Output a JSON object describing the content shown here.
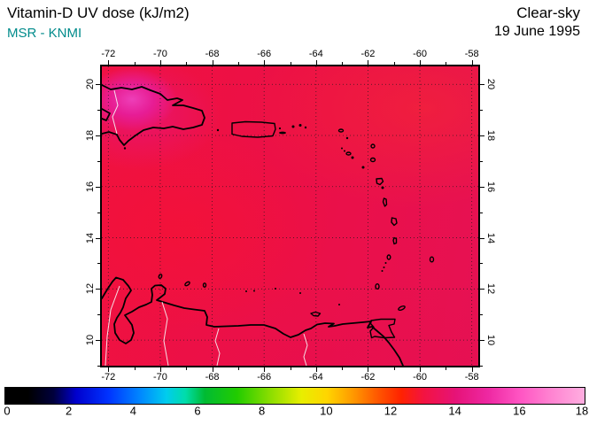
{
  "header": {
    "title": "Vitamin-D UV dose (kJ/m2)",
    "source": "MSR - KNMI",
    "condition": "Clear-sky",
    "date": "19 June 1995"
  },
  "colors": {
    "source_text": "#008b8b",
    "field_base": "#ea1049",
    "field_hotspot": "#e020a0",
    "frame": "#000000"
  },
  "map": {
    "lon_range": [
      -72.25,
      -57.75
    ],
    "lat_range": [
      9.0,
      20.7
    ],
    "lon_ticks": [
      -72,
      -70,
      -68,
      -66,
      -64,
      -62,
      -60,
      -58
    ],
    "lat_ticks": [
      10,
      12,
      14,
      16,
      18,
      20
    ],
    "grid_step_deg": 2
  },
  "colorbar": {
    "min": 0,
    "max": 18,
    "label_values": [
      0,
      2,
      4,
      6,
      8,
      10,
      12,
      14,
      16,
      18
    ],
    "stops": [
      {
        "v": 0,
        "c": "#000000"
      },
      {
        "v": 0.7,
        "c": "#000000"
      },
      {
        "v": 1.5,
        "c": "#00003c"
      },
      {
        "v": 2.2,
        "c": "#0000cd"
      },
      {
        "v": 3.2,
        "c": "#0033ff"
      },
      {
        "v": 4.2,
        "c": "#0088ff"
      },
      {
        "v": 5.0,
        "c": "#00ccee"
      },
      {
        "v": 5.6,
        "c": "#00ddaa"
      },
      {
        "v": 6.2,
        "c": "#00bb33"
      },
      {
        "v": 7.2,
        "c": "#22cc00"
      },
      {
        "v": 8.2,
        "c": "#88dd00"
      },
      {
        "v": 9.2,
        "c": "#e8ee00"
      },
      {
        "v": 10.0,
        "c": "#ffd500"
      },
      {
        "v": 10.8,
        "c": "#ff9900"
      },
      {
        "v": 11.6,
        "c": "#ff5500"
      },
      {
        "v": 12.3,
        "c": "#ff2200"
      },
      {
        "v": 13.0,
        "c": "#f31341"
      },
      {
        "v": 14.0,
        "c": "#e61378"
      },
      {
        "v": 15.0,
        "c": "#ee28a2"
      },
      {
        "v": 16.0,
        "c": "#ff55c3"
      },
      {
        "v": 17.0,
        "c": "#ff85d2"
      },
      {
        "v": 18,
        "c": "#ffaee0"
      }
    ]
  },
  "chart_data": {
    "type": "heatmap",
    "title": "Vitamin-D UV dose (kJ/m2)",
    "subtitle": "Clear-sky, 19 June 1995, MSR - KNMI",
    "region": "Caribbean (Hispaniola, Puerto Rico, Lesser Antilles, northern South America)",
    "units": "kJ/m2",
    "lon_range": [
      -72.25,
      -57.75
    ],
    "lat_range": [
      9.0,
      20.7
    ],
    "colorbar_range": [
      0,
      18
    ],
    "field_summary": "UV dose roughly 12.5 to 14.5 kJ/m2 over the whole domain (crimson-red shades); local magenta maximum near 14.5 over western Hispaniola around 19.5N 72W; slightly redder (about 12.5) along the left-center of the domain"
  }
}
